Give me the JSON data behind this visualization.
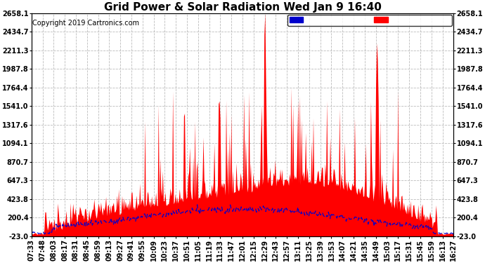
{
  "title": "Grid Power & Solar Radiation Wed Jan 9 16:40",
  "copyright": "Copyright 2019 Cartronics.com",
  "y_ticks": [
    -23.0,
    200.4,
    423.8,
    647.3,
    870.7,
    1094.1,
    1317.6,
    1541.0,
    1764.4,
    1987.8,
    2211.3,
    2434.7,
    2658.1
  ],
  "ylim": [
    -23.0,
    2658.1
  ],
  "x_labels": [
    "07:33",
    "07:48",
    "08:03",
    "08:17",
    "08:31",
    "08:45",
    "08:59",
    "09:13",
    "09:27",
    "09:41",
    "09:55",
    "10:09",
    "10:23",
    "10:37",
    "10:51",
    "11:05",
    "11:19",
    "11:33",
    "11:47",
    "12:01",
    "12:15",
    "12:29",
    "12:43",
    "12:57",
    "13:11",
    "13:25",
    "13:39",
    "13:53",
    "14:07",
    "14:21",
    "14:35",
    "14:49",
    "15:03",
    "15:17",
    "15:31",
    "15:45",
    "15:59",
    "16:13",
    "16:27"
  ],
  "legend_radiation_color": "#0000cc",
  "legend_grid_color": "#ff0000",
  "grid_color": "#bbbbbb",
  "fill_color": "#ff0000",
  "radiation_line_color": "#0000cc",
  "bg_color": "#ffffff",
  "title_fontsize": 11,
  "copyright_fontsize": 7,
  "tick_fontsize": 7
}
